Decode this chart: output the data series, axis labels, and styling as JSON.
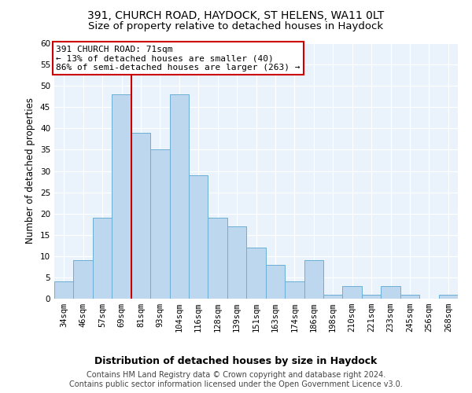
{
  "title1": "391, CHURCH ROAD, HAYDOCK, ST HELENS, WA11 0LT",
  "title2": "Size of property relative to detached houses in Haydock",
  "xlabel": "Distribution of detached houses by size in Haydock",
  "ylabel": "Number of detached properties",
  "categories": [
    "34sqm",
    "46sqm",
    "57sqm",
    "69sqm",
    "81sqm",
    "93sqm",
    "104sqm",
    "116sqm",
    "128sqm",
    "139sqm",
    "151sqm",
    "163sqm",
    "174sqm",
    "186sqm",
    "198sqm",
    "210sqm",
    "221sqm",
    "233sqm",
    "245sqm",
    "256sqm",
    "268sqm"
  ],
  "values": [
    4,
    9,
    19,
    48,
    39,
    35,
    48,
    29,
    19,
    17,
    12,
    8,
    4,
    9,
    1,
    3,
    1,
    3,
    1,
    0,
    1
  ],
  "bar_color": "#bdd7ee",
  "bar_edge_color": "#6baed6",
  "vline_x_index": 3,
  "vline_color": "#cc0000",
  "ylim": [
    0,
    60
  ],
  "yticks": [
    0,
    5,
    10,
    15,
    20,
    25,
    30,
    35,
    40,
    45,
    50,
    55,
    60
  ],
  "annotation_title": "391 CHURCH ROAD: 71sqm",
  "annotation_line1": "← 13% of detached houses are smaller (40)",
  "annotation_line2": "86% of semi-detached houses are larger (263) →",
  "annotation_box_color": "#ffffff",
  "annotation_box_edge": "#cc0000",
  "footer1": "Contains HM Land Registry data © Crown copyright and database right 2024.",
  "footer2": "Contains public sector information licensed under the Open Government Licence v3.0.",
  "bg_color": "#eaf3fb",
  "grid_color": "#ffffff",
  "title1_fontsize": 10,
  "title2_fontsize": 9.5,
  "xlabel_fontsize": 9,
  "ylabel_fontsize": 8.5,
  "tick_fontsize": 7.5,
  "footer_fontsize": 7,
  "ann_fontsize": 8
}
